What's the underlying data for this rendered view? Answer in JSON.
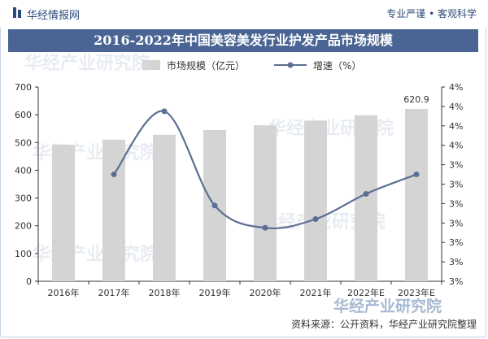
{
  "header": {
    "brand": "华经情报网",
    "slogan": "专业严谨 • 客观科学",
    "title": "2016-2022年中国美容美发行业护发产品市场规模"
  },
  "watermarks": [
    "华经产业研究院",
    "华经产业研究院",
    "华经产业研究院",
    "华经产业研究院",
    "华经产业研究院"
  ],
  "footer": {
    "source": "资料来源：公开资料，华经产业研究院整理",
    "logo_text": "华经产业研究院"
  },
  "colors": {
    "bar": "#d4d4d4",
    "line": "#5b6f95",
    "title_bg": "#4a6593",
    "brand": "#2a4a7a"
  },
  "chart_data": {
    "type": "bar",
    "categories": [
      "2016年",
      "2017年",
      "2018年",
      "2019年",
      "2020年",
      "2021年",
      "2022年E",
      "2023年E"
    ],
    "series": [
      {
        "name": "市场规模（亿元）",
        "type": "bar",
        "axis": "left",
        "values": [
          492,
          510,
          528,
          545,
          562,
          579,
          598,
          620.9
        ]
      },
      {
        "name": "增速（%）",
        "type": "line",
        "axis": "right",
        "values": [
          null,
          3.6,
          4.25,
          3.28,
          3.05,
          3.14,
          3.4,
          3.6
        ]
      }
    ],
    "data_labels": [
      {
        "category": "2023年E",
        "text": "620.9"
      }
    ],
    "left_axis": {
      "ylim": [
        0,
        700
      ],
      "ticks": [
        0,
        100,
        200,
        300,
        400,
        500,
        600,
        700
      ]
    },
    "right_axis": {
      "ylim": [
        2.5,
        4.5
      ],
      "tick_labels": [
        "4%",
        "4%",
        "4%",
        "4%",
        "3%",
        "3%",
        "3%",
        "3%",
        "3%",
        "3%",
        "3%"
      ]
    },
    "legend_position": "top-center",
    "grid": false
  }
}
